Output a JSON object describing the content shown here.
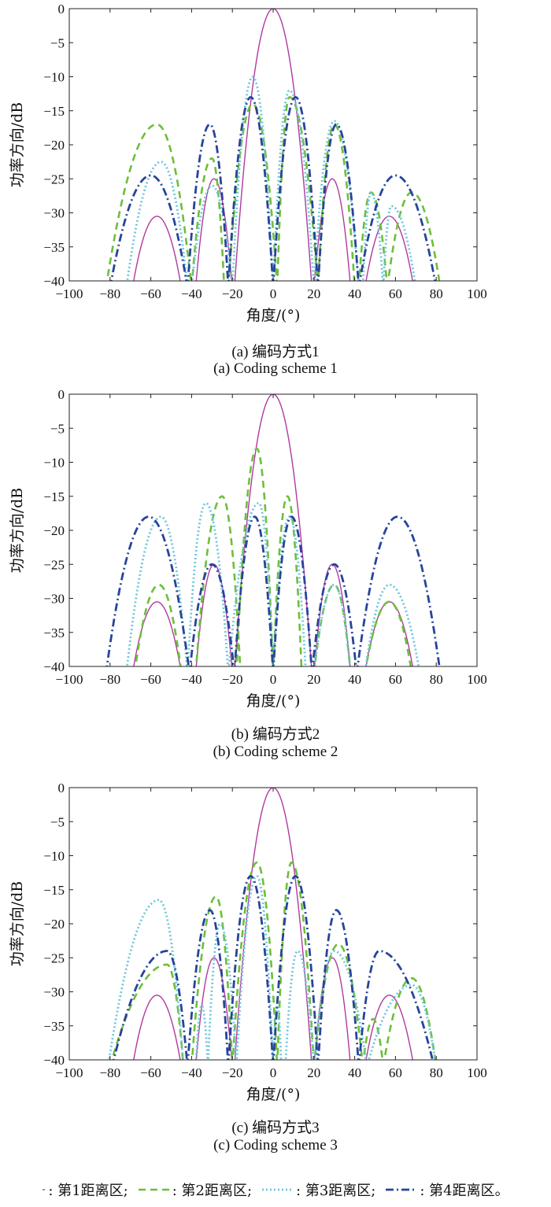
{
  "chart_data": [
    {
      "type": "line",
      "xlabel": "角度/(°)",
      "ylabel": "功率方向/dB",
      "xlim": [
        -100,
        100
      ],
      "ylim": [
        -40,
        0
      ],
      "xticks": [
        "−100",
        "−80",
        "−60",
        "−40",
        "−20",
        "0",
        "20",
        "40",
        "60",
        "80",
        "100"
      ],
      "yticks": [
        "0",
        "−5",
        "−10",
        "−15",
        "−20",
        "−25",
        "−30",
        "−35",
        "−40"
      ],
      "caption_cn": "(a) 编码方式1",
      "caption_en": "(a) Coding scheme 1",
      "series": [
        {
          "name": "第1距离区",
          "color": "#b03aa0",
          "dash": "solid",
          "lobes": [
            [
              -69,
              -45,
              -57,
              -30.5
            ],
            [
              -38,
              -20,
              -29,
              -25
            ],
            [
              -19,
              19,
              0,
              0
            ],
            [
              20,
              38,
              29,
              -25
            ],
            [
              45,
              69,
              57,
              -30.5
            ]
          ]
        },
        {
          "name": "第2距离区",
          "color": "#6cbf3a",
          "dash": "dashed",
          "lobes": [
            [
              -82,
              -40,
              -57,
              -17
            ],
            [
              -40,
              -24,
              -30,
              -22
            ],
            [
              -22,
              2,
              -10,
              -14
            ],
            [
              2,
              22,
              8,
              -13
            ],
            [
              22,
              40,
              30,
              -17
            ],
            [
              42,
              56,
              48,
              -27
            ],
            [
              56,
              82,
              68,
              -27
            ]
          ]
        },
        {
          "name": "第3距离区",
          "color": "#6ec6dc",
          "dash": "dotted",
          "lobes": [
            [
              -72,
              -42,
              -55,
              -22.5
            ],
            [
              -40,
              -20,
              -30,
              -26
            ],
            [
              -20,
              0,
              -10,
              -10
            ],
            [
              0,
              20,
              8,
              -12
            ],
            [
              20,
              42,
              30,
              -16.5
            ],
            [
              44,
              54,
              48,
              -27
            ],
            [
              54,
              70,
              58,
              -29
            ]
          ]
        },
        {
          "name": "第4距离区",
          "color": "#27449a",
          "dash": "dashdot",
          "lobes": [
            [
              -80,
              -42,
              -60,
              -24.5
            ],
            [
              -42,
              -22,
              -31,
              -17
            ],
            [
              -22,
              0,
              -11,
              -13
            ],
            [
              0,
              22,
              11,
              -13
            ],
            [
              22,
              42,
              31,
              -17
            ],
            [
              42,
              80,
              60,
              -24.5
            ]
          ]
        }
      ]
    },
    {
      "type": "line",
      "xlabel": "角度/(°)",
      "ylabel": "功率方向/dB",
      "xlim": [
        -100,
        100
      ],
      "ylim": [
        -40,
        0
      ],
      "xticks": [
        "−100",
        "−80",
        "−60",
        "−40",
        "−20",
        "0",
        "20",
        "40",
        "60",
        "80",
        "100"
      ],
      "yticks": [
        "0",
        "−5",
        "−10",
        "−15",
        "−20",
        "−25",
        "−30",
        "−35",
        "−40"
      ],
      "caption_cn": "(b) 编码方式2",
      "caption_en": "(b) Coding scheme 2",
      "series": [
        {
          "name": "第1距离区",
          "color": "#b03aa0",
          "dash": "solid",
          "lobes": [
            [
              -69,
              -45,
              -57,
              -30.5
            ],
            [
              -38,
              -20,
              -29,
              -25
            ],
            [
              -19,
              19,
              0,
              0
            ],
            [
              20,
              38,
              29,
              -25
            ],
            [
              45,
              69,
              57,
              -30.5
            ]
          ]
        },
        {
          "name": "第2距离区",
          "color": "#6cbf3a",
          "dash": "dashed",
          "lobes": [
            [
              -68,
              -45,
              -56,
              -28
            ],
            [
              -38,
              -16,
              -25,
              -15
            ],
            [
              -18,
              0,
              -8,
              -8
            ],
            [
              0,
              14,
              7,
              -15
            ],
            [
              20,
              38,
              30,
              -28
            ],
            [
              45,
              68,
              57,
              -30.5
            ]
          ]
        },
        {
          "name": "第3距离区",
          "color": "#6ec6dc",
          "dash": "dotted",
          "lobes": [
            [
              -72,
              -42,
              -55,
              -18
            ],
            [
              -42,
              -22,
              -33,
              -16
            ],
            [
              -22,
              0,
              -7,
              -16
            ],
            [
              0,
              16,
              8,
              -18
            ],
            [
              20,
              38,
              30,
              -28
            ],
            [
              45,
              72,
              57,
              -28
            ]
          ]
        },
        {
          "name": "第4距离区",
          "color": "#27449a",
          "dash": "dashdot",
          "lobes": [
            [
              -82,
              -41,
              -61,
              -18
            ],
            [
              -41,
              -19,
              -30,
              -25
            ],
            [
              -19,
              0,
              -9,
              -18
            ],
            [
              0,
              19,
              9,
              -18
            ],
            [
              19,
              41,
              30,
              -25
            ],
            [
              41,
              82,
              61,
              -18
            ]
          ]
        }
      ]
    },
    {
      "type": "line",
      "xlabel": "角度/(°)",
      "ylabel": "功率方向/dB",
      "xlim": [
        -100,
        100
      ],
      "ylim": [
        -40,
        0
      ],
      "xticks": [
        "−100",
        "−80",
        "−60",
        "−40",
        "−20",
        "0",
        "20",
        "40",
        "60",
        "80",
        "100"
      ],
      "yticks": [
        "0",
        "−5",
        "−10",
        "−15",
        "−20",
        "−25",
        "−30",
        "−35",
        "−40"
      ],
      "caption_cn": "(c) 编码方式3",
      "caption_en": "(c) Coding scheme 3",
      "series": [
        {
          "name": "第1距离区",
          "color": "#b03aa0",
          "dash": "solid",
          "lobes": [
            [
              -69,
              -45,
              -57,
              -30.5
            ],
            [
              -38,
              -20,
              -29,
              -25
            ],
            [
              -19,
              19,
              0,
              0
            ],
            [
              20,
              38,
              29,
              -25
            ],
            [
              45,
              69,
              57,
              -30.5
            ]
          ]
        },
        {
          "name": "第2距离区",
          "color": "#6cbf3a",
          "dash": "dashed",
          "lobes": [
            [
              -80,
              -44,
              -52,
              -26
            ],
            [
              -40,
              -20,
              -28,
              -16
            ],
            [
              -20,
              2,
              -8,
              -11
            ],
            [
              2,
              20,
              9,
              -11
            ],
            [
              20,
              44,
              32,
              -23
            ],
            [
              44,
              54,
              49,
              -34
            ],
            [
              54,
              80,
              68,
              -28
            ]
          ]
        },
        {
          "name": "第3距离区",
          "color": "#6ec6dc",
          "dash": "dotted",
          "lobes": [
            [
              -81,
              -44,
              -56,
              -16.5
            ],
            [
              -38,
              -32,
              -35,
              -32
            ],
            [
              -32,
              -18,
              -26,
              -20
            ],
            [
              -18,
              0,
              -8,
              -13
            ],
            [
              0,
              4,
              2,
              -32
            ],
            [
              6,
              20,
              12,
              -24
            ],
            [
              20,
              46,
              30,
              -24
            ],
            [
              46,
              80,
              68,
              -29
            ]
          ]
        },
        {
          "name": "第4距离区",
          "color": "#27449a",
          "dash": "dashdot",
          "lobes": [
            [
              -79,
              -42,
              -52,
              -24
            ],
            [
              -42,
              -22,
              -31,
              -18
            ],
            [
              -22,
              0,
              -11,
              -13
            ],
            [
              0,
              22,
              11,
              -13
            ],
            [
              22,
              42,
              31,
              -18
            ],
            [
              42,
              79,
              52,
              -24
            ]
          ]
        }
      ]
    }
  ],
  "legend": {
    "items": [
      {
        "label": ": 第1距离区;",
        "color": "#b03aa0",
        "dash": "solid"
      },
      {
        "label": ": 第2距离区;",
        "color": "#6cbf3a",
        "dash": "dashed"
      },
      {
        "label": ": 第3距离区;",
        "color": "#6ec6dc",
        "dash": "dotted"
      },
      {
        "label": ": 第4距离区。",
        "color": "#27449a",
        "dash": "dashdot"
      }
    ]
  }
}
